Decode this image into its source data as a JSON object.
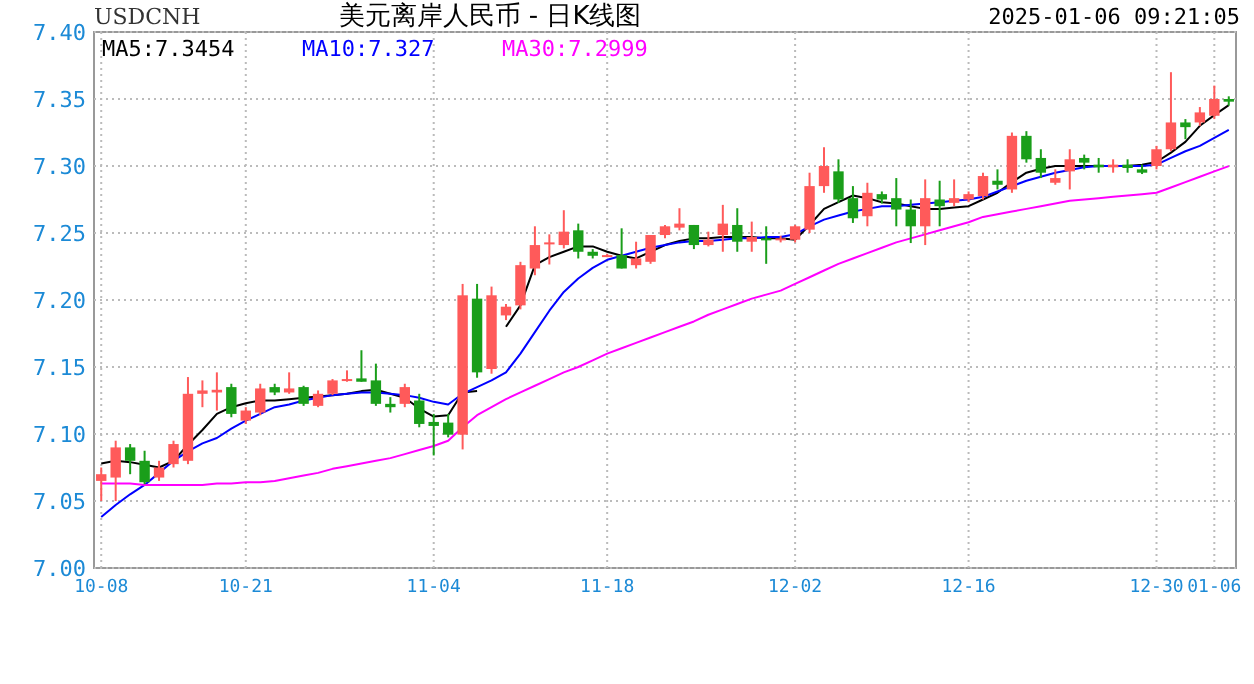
{
  "chart_data": {
    "type": "candlestick",
    "title": "美元离岸人民币 - 日K线图",
    "annotations": [
      "USDCNH",
      "2025-01-06 09:21:05"
    ],
    "categories": [
      "10-08",
      null,
      null,
      null,
      null,
      null,
      null,
      null,
      null,
      null,
      "10-21",
      null,
      null,
      null,
      null,
      null,
      null,
      null,
      null,
      null,
      null,
      null,
      null,
      "11-04",
      null,
      null,
      null,
      null,
      null,
      null,
      null,
      null,
      null,
      null,
      null,
      "11-18",
      null,
      null,
      null,
      null,
      null,
      null,
      null,
      null,
      null,
      null,
      null,
      null,
      "12-02",
      null,
      null,
      null,
      null,
      null,
      null,
      null,
      null,
      null,
      null,
      null,
      "12-16",
      null,
      null,
      null,
      null,
      null,
      null,
      null,
      null,
      null,
      null,
      null,
      null,
      "12-30",
      null,
      null,
      null,
      "01-06",
      null
    ],
    "ohlc": [
      [
        7.065,
        7.075,
        7.05,
        7.07
      ],
      [
        7.0675,
        7.095,
        7.05,
        7.09
      ],
      [
        7.09,
        7.0925,
        7.07,
        7.08
      ],
      [
        7.08,
        7.0875,
        7.0625,
        7.064
      ],
      [
        7.0675,
        7.08,
        7.065,
        7.075
      ],
      [
        7.0775,
        7.095,
        7.075,
        7.0925
      ],
      [
        7.08,
        7.1425,
        7.0775,
        7.13
      ],
      [
        7.13,
        7.14,
        7.12,
        7.1325
      ],
      [
        7.131,
        7.146,
        7.1175,
        7.133
      ],
      [
        7.135,
        7.1375,
        7.1125,
        7.115
      ],
      [
        7.11,
        7.12,
        7.1075,
        7.1175
      ],
      [
        7.116,
        7.1375,
        7.114,
        7.134
      ],
      [
        7.135,
        7.1375,
        7.129,
        7.131
      ],
      [
        7.131,
        7.146,
        7.13,
        7.134
      ],
      [
        7.135,
        7.136,
        7.121,
        7.1225
      ],
      [
        7.121,
        7.1325,
        7.12,
        7.13
      ],
      [
        7.13,
        7.141,
        7.129,
        7.14
      ],
      [
        7.14,
        7.1475,
        7.139,
        7.141
      ],
      [
        7.1415,
        7.1625,
        7.139,
        7.139
      ],
      [
        7.14,
        7.1525,
        7.121,
        7.1225
      ],
      [
        7.1225,
        7.1275,
        7.116,
        7.12
      ],
      [
        7.1225,
        7.1375,
        7.12,
        7.135
      ],
      [
        7.125,
        7.13,
        7.105,
        7.1075
      ],
      [
        7.109,
        7.115,
        7.084,
        7.106
      ],
      [
        7.1085,
        7.115,
        7.0975,
        7.0995
      ],
      [
        7.0995,
        7.212,
        7.0885,
        7.2035
      ],
      [
        7.201,
        7.212,
        7.142,
        7.146
      ],
      [
        7.1485,
        7.21,
        7.145,
        7.2035
      ],
      [
        7.1885,
        7.197,
        7.185,
        7.195
      ],
      [
        7.196,
        7.2285,
        7.193,
        7.226
      ],
      [
        7.2235,
        7.255,
        7.2185,
        7.241
      ],
      [
        7.2415,
        7.249,
        7.2265,
        7.243
      ],
      [
        7.241,
        7.267,
        7.2385,
        7.251
      ],
      [
        7.252,
        7.257,
        7.231,
        7.236
      ],
      [
        7.236,
        7.238,
        7.231,
        7.233
      ],
      [
        7.233,
        7.2345,
        7.232,
        7.2335
      ],
      [
        7.2335,
        7.2535,
        7.2235,
        7.2235
      ],
      [
        7.226,
        7.2435,
        7.2235,
        7.231
      ],
      [
        7.2285,
        7.2485,
        7.227,
        7.2485
      ],
      [
        7.2485,
        7.256,
        7.246,
        7.255
      ],
      [
        7.254,
        7.2685,
        7.252,
        7.257
      ],
      [
        7.256,
        7.256,
        7.238,
        7.241
      ],
      [
        7.241,
        7.251,
        7.24,
        7.245
      ],
      [
        7.2485,
        7.271,
        7.236,
        7.257
      ],
      [
        7.256,
        7.2685,
        7.236,
        7.2435
      ],
      [
        7.2435,
        7.2585,
        7.236,
        7.247
      ],
      [
        7.246,
        7.255,
        7.227,
        7.245
      ],
      [
        7.245,
        7.248,
        7.243,
        7.246
      ],
      [
        7.245,
        7.256,
        7.243,
        7.255
      ],
      [
        7.2525,
        7.295,
        7.25,
        7.285
      ],
      [
        7.285,
        7.314,
        7.28,
        7.3
      ],
      [
        7.296,
        7.305,
        7.2725,
        7.275
      ],
      [
        7.276,
        7.285,
        7.2575,
        7.261
      ],
      [
        7.2625,
        7.2875,
        7.255,
        7.28
      ],
      [
        7.279,
        7.281,
        7.272,
        7.275
      ],
      [
        7.276,
        7.291,
        7.255,
        7.2675
      ],
      [
        7.2675,
        7.275,
        7.2425,
        7.255
      ],
      [
        7.255,
        7.29,
        7.241,
        7.276
      ],
      [
        7.275,
        7.289,
        7.255,
        7.27
      ],
      [
        7.2725,
        7.29,
        7.27,
        7.276
      ],
      [
        7.275,
        7.281,
        7.273,
        7.279
      ],
      [
        7.2775,
        7.295,
        7.275,
        7.2925
      ],
      [
        7.289,
        7.2975,
        7.2825,
        7.286
      ],
      [
        7.2825,
        7.325,
        7.28,
        7.3225
      ],
      [
        7.3225,
        7.326,
        7.3025,
        7.305
      ],
      [
        7.306,
        7.3125,
        7.291,
        7.295
      ],
      [
        7.2875,
        7.2975,
        7.286,
        7.291
      ],
      [
        7.296,
        7.3125,
        7.2825,
        7.305
      ],
      [
        7.306,
        7.3085,
        7.2975,
        7.3025
      ],
      [
        7.301,
        7.306,
        7.295,
        7.299
      ],
      [
        7.299,
        7.305,
        7.295,
        7.301
      ],
      [
        7.301,
        7.305,
        7.295,
        7.2985
      ],
      [
        7.2975,
        7.301,
        7.294,
        7.295
      ],
      [
        7.3,
        7.315,
        7.2975,
        7.3125
      ],
      [
        7.3125,
        7.37,
        7.311,
        7.3325
      ],
      [
        7.3325,
        7.335,
        7.32,
        7.329
      ],
      [
        7.3325,
        7.344,
        7.33,
        7.34
      ],
      [
        7.3375,
        7.36,
        7.335,
        7.35
      ],
      [
        7.35,
        7.352,
        7.345,
        7.348
      ]
    ],
    "colors": [
      "#ff5a5a",
      "#ff5a5a",
      "#1a9e1a",
      "#1a9e1a",
      "#ff5a5a",
      "#ff5a5a",
      "#ff5a5a",
      "#ff5a5a",
      "#ff5a5a",
      "#1a9e1a",
      "#ff5a5a",
      "#ff5a5a",
      "#1a9e1a",
      "#ff5a5a",
      "#1a9e1a",
      "#ff5a5a",
      "#ff5a5a",
      "#ff5a5a",
      "#1a9e1a",
      "#1a9e1a",
      "#1a9e1a",
      "#ff5a5a",
      "#1a9e1a",
      "#1a9e1a",
      "#1a9e1a",
      "#ff5a5a",
      "#1a9e1a",
      "#ff5a5a",
      "#ff5a5a",
      "#ff5a5a",
      "#ff5a5a",
      "#ff5a5a",
      "#ff5a5a",
      "#1a9e1a",
      "#1a9e1a",
      "#ff5a5a",
      "#1a9e1a",
      "#ff5a5a",
      "#ff5a5a",
      "#ff5a5a",
      "#ff5a5a",
      "#1a9e1a",
      "#ff5a5a",
      "#ff5a5a",
      "#1a9e1a",
      "#ff5a5a",
      "#1a9e1a",
      "#ff5a5a",
      "#ff5a5a",
      "#ff5a5a",
      "#ff5a5a",
      "#1a9e1a",
      "#1a9e1a",
      "#ff5a5a",
      "#1a9e1a",
      "#1a9e1a",
      "#1a9e1a",
      "#ff5a5a",
      "#1a9e1a",
      "#ff5a5a",
      "#ff5a5a",
      "#ff5a5a",
      "#1a9e1a",
      "#ff5a5a",
      "#1a9e1a",
      "#1a9e1a",
      "#ff5a5a",
      "#ff5a5a",
      "#1a9e1a",
      "#1a9e1a",
      "#ff5a5a",
      "#1a9e1a",
      "#1a9e1a",
      "#ff5a5a",
      "#ff5a5a",
      "#1a9e1a",
      "#ff5a5a",
      "#ff5a5a",
      "#1a9e1a"
    ],
    "series": [
      {
        "name": "MA5:7.3454",
        "type": "line",
        "color": "#000000",
        "values": [
          7.078,
          7.08,
          7.079,
          7.077,
          7.075,
          7.08,
          7.092,
          7.103,
          7.115,
          7.12,
          7.123,
          7.125,
          7.125,
          7.126,
          7.127,
          7.128,
          7.129,
          7.13,
          7.132,
          7.133,
          7.13,
          7.127,
          7.119,
          7.113,
          7.114,
          7.131,
          7.132,
          null,
          7.18,
          7.196,
          7.226,
          7.232,
          7.236,
          7.24,
          7.24,
          7.236,
          7.233,
          7.231,
          7.236,
          7.241,
          7.244,
          7.246,
          7.246,
          7.247,
          7.247,
          7.247,
          7.246,
          7.246,
          7.245,
          7.256,
          7.268,
          7.273,
          7.278,
          7.276,
          7.273,
          7.272,
          7.27,
          7.268,
          7.268,
          7.269,
          7.27,
          7.275,
          7.28,
          7.288,
          7.295,
          7.298,
          7.3,
          7.3,
          7.3,
          7.3,
          7.3,
          7.3,
          7.301,
          7.303,
          7.31,
          7.318,
          7.33,
          7.338,
          7.3454
        ]
      },
      {
        "name": "MA10:7.327",
        "type": "line",
        "color": "#0000ff",
        "values": [
          7.038,
          7.047,
          7.055,
          7.062,
          7.071,
          7.08,
          7.087,
          7.093,
          7.097,
          7.104,
          7.11,
          7.115,
          7.12,
          7.122,
          7.125,
          7.127,
          7.129,
          7.13,
          7.131,
          7.131,
          7.13,
          7.129,
          7.127,
          7.124,
          7.122,
          7.13,
          7.135,
          7.14,
          7.146,
          7.16,
          7.176,
          7.192,
          7.206,
          7.216,
          7.224,
          7.23,
          7.233,
          7.236,
          7.239,
          7.241,
          7.243,
          7.244,
          7.244,
          7.245,
          7.246,
          7.246,
          7.247,
          7.247,
          7.249,
          7.255,
          7.26,
          7.263,
          7.266,
          7.268,
          7.27,
          7.27,
          7.271,
          7.272,
          7.273,
          7.274,
          7.275,
          7.277,
          7.281,
          7.285,
          7.289,
          7.292,
          7.295,
          7.297,
          7.299,
          7.3,
          7.3,
          7.3,
          7.3,
          7.301,
          7.306,
          7.311,
          7.315,
          7.321,
          7.327
        ]
      },
      {
        "name": "MA30:7.2999",
        "type": "line",
        "color": "#ff00ff",
        "values": [
          7.063,
          7.063,
          7.063,
          7.062,
          7.062,
          7.062,
          7.062,
          7.062,
          7.063,
          7.063,
          7.064,
          7.064,
          7.065,
          7.067,
          7.069,
          7.071,
          7.074,
          7.076,
          7.078,
          7.08,
          7.082,
          7.085,
          7.088,
          7.091,
          7.095,
          7.105,
          7.114,
          7.12,
          7.126,
          7.131,
          7.136,
          7.141,
          7.146,
          7.15,
          7.155,
          7.16,
          7.164,
          7.168,
          7.172,
          7.176,
          7.18,
          7.184,
          7.189,
          7.193,
          7.197,
          7.201,
          7.204,
          7.207,
          7.212,
          7.217,
          7.222,
          7.227,
          7.231,
          7.235,
          7.239,
          7.243,
          7.246,
          7.249,
          7.252,
          7.255,
          7.258,
          7.262,
          7.264,
          7.266,
          7.268,
          7.27,
          7.272,
          7.274,
          7.275,
          7.276,
          7.277,
          7.278,
          7.279,
          7.28,
          7.284,
          7.288,
          7.292,
          7.296,
          7.2999
        ]
      }
    ],
    "ylim": [
      7.0,
      7.4
    ],
    "yticks": [
      {
        "value": 7.0,
        "label": "7.00"
      },
      {
        "value": 7.05,
        "label": "7.05"
      },
      {
        "value": 7.1,
        "label": "7.10"
      },
      {
        "value": 7.15,
        "label": "7.15"
      },
      {
        "value": 7.2,
        "label": "7.20"
      },
      {
        "value": 7.25,
        "label": "7.25"
      },
      {
        "value": 7.3,
        "label": "7.30"
      },
      {
        "value": 7.35,
        "label": "7.35"
      },
      {
        "value": 7.4,
        "label": "7.40"
      }
    ],
    "grid": true,
    "legend": "top left"
  }
}
